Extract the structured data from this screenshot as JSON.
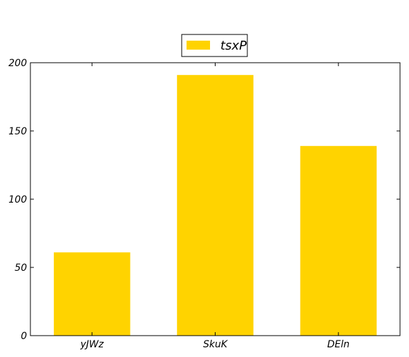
{
  "chart_data": {
    "type": "bar",
    "title": "",
    "xlabel": "",
    "ylabel": "",
    "categories": [
      "yJWz",
      "SkuK",
      "DEln"
    ],
    "series": [
      {
        "name": "tsxP",
        "values": [
          61,
          191,
          139
        ],
        "color": "#ffd300"
      }
    ],
    "ylim": [
      0,
      200
    ],
    "yticks": [
      0,
      50,
      100,
      150,
      200
    ],
    "grid": false,
    "legend_placement": "top-center"
  }
}
